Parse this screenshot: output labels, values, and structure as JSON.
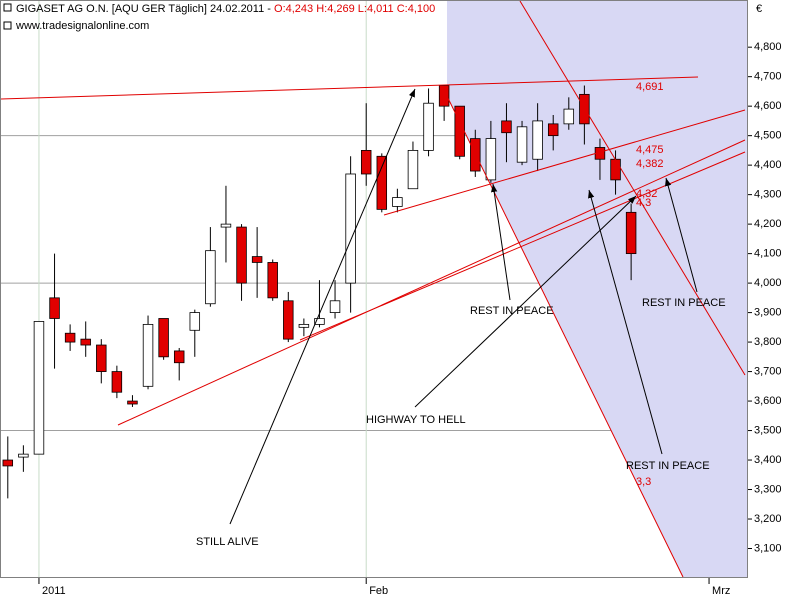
{
  "chart_data": {
    "type": "candlestick",
    "title": "GIGASET AG O.N. [AQU GER  Täglich] 24.02.2011 -",
    "ohlc_label": "O:4,243 H:4,269 L:4,011 C:4,100",
    "source": "www.tradesignalonline.com",
    "currency": "€",
    "categories": [
      null,
      null,
      "2011",
      null,
      null,
      null,
      null,
      null,
      null,
      null,
      null,
      null,
      null,
      null,
      null,
      null,
      null,
      null,
      null,
      null,
      null,
      null,
      null,
      "Feb",
      null,
      null,
      null,
      null,
      null,
      null,
      null,
      null,
      null,
      null,
      null,
      null,
      null,
      null,
      null,
      null,
      null,
      null,
      null,
      null,
      null,
      "Mrz",
      null,
      null
    ],
    "open": [
      3.4,
      3.41,
      3.42,
      3.95,
      3.83,
      3.81,
      3.79,
      3.7,
      3.6,
      3.65,
      3.88,
      3.77,
      3.84,
      3.93,
      4.19,
      4.19,
      4.09,
      4.07,
      3.94,
      3.85,
      3.86,
      3.9,
      4.0,
      4.45,
      4.43,
      4.26,
      4.32,
      4.45,
      4.67,
      4.6,
      4.49,
      4.35,
      4.55,
      4.41,
      4.42,
      4.54,
      4.54,
      4.64,
      4.46,
      4.42,
      4.24,
      null,
      null,
      null,
      null,
      null,
      null,
      null
    ],
    "high": [
      3.48,
      3.45,
      3.87,
      4.1,
      3.86,
      3.87,
      3.81,
      3.72,
      3.62,
      3.89,
      3.88,
      3.78,
      3.91,
      4.19,
      4.33,
      4.2,
      4.19,
      4.08,
      3.97,
      3.88,
      4.01,
      4.01,
      4.43,
      4.61,
      4.44,
      4.32,
      4.48,
      4.66,
      4.67,
      4.6,
      4.52,
      4.55,
      4.61,
      4.55,
      4.61,
      4.57,
      4.63,
      4.67,
      4.49,
      4.45,
      4.27,
      null,
      null,
      null,
      null,
      null,
      null,
      null
    ],
    "low": [
      3.27,
      3.36,
      3.42,
      3.71,
      3.77,
      3.75,
      3.66,
      3.61,
      3.58,
      3.64,
      3.74,
      3.67,
      3.75,
      3.92,
      4.07,
      3.94,
      3.95,
      3.94,
      3.8,
      3.82,
      3.85,
      3.88,
      3.9,
      4.33,
      4.24,
      4.24,
      4.32,
      4.43,
      4.55,
      4.42,
      4.36,
      4.34,
      4.41,
      4.4,
      4.38,
      4.45,
      4.52,
      4.47,
      4.35,
      4.3,
      4.01,
      null,
      null,
      null,
      null,
      null,
      null,
      null
    ],
    "close": [
      3.38,
      3.42,
      3.87,
      3.88,
      3.8,
      3.79,
      3.7,
      3.63,
      3.59,
      3.86,
      3.75,
      3.73,
      3.9,
      4.11,
      4.2,
      4.0,
      4.07,
      3.95,
      3.81,
      3.86,
      3.88,
      3.94,
      4.37,
      4.37,
      4.25,
      4.29,
      4.45,
      4.61,
      4.6,
      4.43,
      4.38,
      4.49,
      4.51,
      4.53,
      4.55,
      4.5,
      4.59,
      4.54,
      4.42,
      4.35,
      4.1,
      null,
      null,
      null,
      null,
      null,
      null,
      null
    ],
    "up_color": "#ffffff",
    "down_color": "#e00000",
    "ylim": [
      3.0,
      4.96
    ],
    "yticks": [
      {
        "value": 3.1,
        "label": "3,100"
      },
      {
        "value": 3.2,
        "label": "3,200"
      },
      {
        "value": 3.3,
        "label": "3,300"
      },
      {
        "value": 3.4,
        "label": "3,400"
      },
      {
        "value": 3.5,
        "label": "3,500"
      },
      {
        "value": 3.6,
        "label": "3,600"
      },
      {
        "value": 3.7,
        "label": "3,700"
      },
      {
        "value": 3.8,
        "label": "3,800"
      },
      {
        "value": 3.9,
        "label": "3,900"
      },
      {
        "value": 4.0,
        "label": "4,000"
      },
      {
        "value": 4.1,
        "label": "4,100"
      },
      {
        "value": 4.2,
        "label": "4,200"
      },
      {
        "value": 4.3,
        "label": "4,300"
      },
      {
        "value": 4.4,
        "label": "4,400"
      },
      {
        "value": 4.5,
        "label": "4,500"
      },
      {
        "value": 4.6,
        "label": "4,600"
      },
      {
        "value": 4.7,
        "label": "4,700"
      },
      {
        "value": 4.8,
        "label": "4,800"
      }
    ],
    "ygrid": [
      3.5,
      4.0,
      4.5
    ],
    "annotations": [
      "4,691",
      "4,475",
      "4,382",
      "4,32",
      "4,3",
      "3,3",
      "STILL ALIVE",
      "HIGHWAY TO HELL",
      "REST IN PEACE",
      "REST IN PEACE",
      "REST IN PEACE"
    ]
  }
}
